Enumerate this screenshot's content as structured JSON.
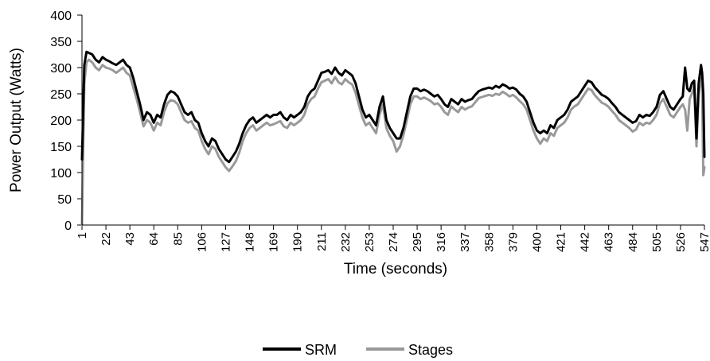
{
  "chart_data": {
    "type": "line",
    "title": "",
    "xlabel": "Time (seconds)",
    "ylabel": "Power Output (Watts)",
    "ylim": [
      0,
      400
    ],
    "yticks": [
      0,
      50,
      100,
      150,
      200,
      250,
      300,
      350,
      400
    ],
    "xlim": [
      1,
      547
    ],
    "xticks": [
      1,
      22,
      43,
      64,
      85,
      106,
      127,
      148,
      169,
      190,
      211,
      232,
      253,
      274,
      295,
      316,
      337,
      358,
      379,
      400,
      421,
      442,
      463,
      484,
      505,
      526,
      547
    ],
    "grid": false,
    "legend_position": "bottom",
    "series": [
      {
        "name": "SRM",
        "color": "#000000",
        "x": [
          1,
          3,
          5,
          7,
          10,
          13,
          16,
          19,
          22,
          25,
          28,
          31,
          34,
          37,
          40,
          43,
          46,
          49,
          52,
          55,
          58,
          61,
          64,
          67,
          70,
          73,
          76,
          79,
          82,
          85,
          88,
          91,
          94,
          97,
          100,
          103,
          106,
          109,
          112,
          115,
          118,
          121,
          124,
          127,
          130,
          133,
          136,
          139,
          142,
          145,
          148,
          151,
          154,
          157,
          160,
          163,
          166,
          169,
          172,
          175,
          178,
          181,
          184,
          187,
          190,
          193,
          196,
          199,
          202,
          205,
          208,
          211,
          214,
          217,
          220,
          223,
          226,
          229,
          232,
          235,
          238,
          241,
          244,
          247,
          250,
          253,
          256,
          259,
          262,
          265,
          268,
          271,
          274,
          277,
          280,
          283,
          286,
          289,
          292,
          295,
          298,
          301,
          304,
          307,
          310,
          313,
          316,
          319,
          322,
          325,
          328,
          331,
          334,
          337,
          340,
          343,
          346,
          349,
          352,
          355,
          358,
          361,
          364,
          367,
          370,
          373,
          376,
          379,
          382,
          385,
          388,
          391,
          394,
          397,
          400,
          403,
          406,
          409,
          412,
          415,
          418,
          421,
          424,
          427,
          430,
          433,
          436,
          439,
          442,
          445,
          448,
          451,
          454,
          457,
          460,
          463,
          466,
          469,
          472,
          475,
          478,
          481,
          484,
          487,
          490,
          493,
          496,
          499,
          502,
          505,
          508,
          511,
          514,
          517,
          520,
          523,
          526,
          528,
          530,
          532,
          534,
          536,
          538,
          540,
          542,
          544,
          545,
          546,
          547
        ],
        "y": [
          125,
          305,
          330,
          328,
          325,
          315,
          310,
          320,
          315,
          312,
          308,
          305,
          310,
          315,
          305,
          300,
          280,
          255,
          230,
          200,
          215,
          210,
          195,
          210,
          205,
          230,
          248,
          255,
          252,
          245,
          230,
          215,
          210,
          215,
          200,
          195,
          175,
          160,
          150,
          165,
          160,
          145,
          135,
          125,
          120,
          130,
          140,
          155,
          175,
          190,
          200,
          205,
          195,
          200,
          205,
          210,
          205,
          210,
          210,
          215,
          205,
          200,
          210,
          205,
          210,
          215,
          225,
          245,
          255,
          260,
          275,
          290,
          292,
          295,
          288,
          300,
          290,
          285,
          295,
          290,
          285,
          270,
          245,
          220,
          205,
          210,
          200,
          190,
          225,
          245,
          200,
          185,
          175,
          165,
          165,
          185,
          215,
          245,
          260,
          260,
          255,
          258,
          255,
          250,
          245,
          248,
          240,
          230,
          225,
          240,
          235,
          230,
          240,
          235,
          238,
          240,
          248,
          255,
          258,
          260,
          262,
          260,
          265,
          262,
          268,
          265,
          260,
          262,
          258,
          250,
          245,
          235,
          215,
          195,
          180,
          175,
          180,
          175,
          190,
          185,
          200,
          205,
          210,
          220,
          235,
          240,
          245,
          255,
          265,
          275,
          272,
          262,
          255,
          248,
          245,
          240,
          232,
          225,
          215,
          210,
          205,
          200,
          195,
          198,
          210,
          205,
          210,
          208,
          215,
          225,
          248,
          255,
          240,
          225,
          220,
          230,
          240,
          245,
          300,
          260,
          255,
          270,
          275,
          165,
          270,
          305,
          290,
          250,
          130
        ]
      },
      {
        "name": "Stages",
        "color": "#999999",
        "x": [
          1,
          3,
          5,
          7,
          10,
          13,
          16,
          19,
          22,
          25,
          28,
          31,
          34,
          37,
          40,
          43,
          46,
          49,
          52,
          55,
          58,
          61,
          64,
          67,
          70,
          73,
          76,
          79,
          82,
          85,
          88,
          91,
          94,
          97,
          100,
          103,
          106,
          109,
          112,
          115,
          118,
          121,
          124,
          127,
          130,
          133,
          136,
          139,
          142,
          145,
          148,
          151,
          154,
          157,
          160,
          163,
          166,
          169,
          172,
          175,
          178,
          181,
          184,
          187,
          190,
          193,
          196,
          199,
          202,
          205,
          208,
          211,
          214,
          217,
          220,
          223,
          226,
          229,
          232,
          235,
          238,
          241,
          244,
          247,
          250,
          253,
          256,
          259,
          262,
          265,
          268,
          271,
          274,
          277,
          280,
          283,
          286,
          289,
          292,
          295,
          298,
          301,
          304,
          307,
          310,
          313,
          316,
          319,
          322,
          325,
          328,
          331,
          334,
          337,
          340,
          343,
          346,
          349,
          352,
          355,
          358,
          361,
          364,
          367,
          370,
          373,
          376,
          379,
          382,
          385,
          388,
          391,
          394,
          397,
          400,
          403,
          406,
          409,
          412,
          415,
          418,
          421,
          424,
          427,
          430,
          433,
          436,
          439,
          442,
          445,
          448,
          451,
          454,
          457,
          460,
          463,
          466,
          469,
          472,
          475,
          478,
          481,
          484,
          487,
          490,
          493,
          496,
          499,
          502,
          505,
          508,
          511,
          514,
          517,
          520,
          523,
          526,
          528,
          530,
          532,
          534,
          536,
          538,
          540,
          542,
          544,
          545,
          546,
          547
        ],
        "y": [
          0,
          270,
          310,
          315,
          310,
          300,
          295,
          305,
          300,
          298,
          295,
          290,
          295,
          300,
          290,
          285,
          262,
          240,
          215,
          188,
          200,
          195,
          180,
          195,
          190,
          215,
          232,
          238,
          236,
          230,
          215,
          200,
          195,
          198,
          185,
          180,
          160,
          145,
          135,
          150,
          145,
          130,
          120,
          110,
          103,
          112,
          122,
          138,
          160,
          175,
          185,
          190,
          180,
          185,
          190,
          195,
          190,
          192,
          195,
          198,
          188,
          185,
          195,
          190,
          195,
          200,
          210,
          230,
          240,
          245,
          260,
          272,
          275,
          278,
          270,
          282,
          272,
          268,
          278,
          272,
          268,
          252,
          228,
          205,
          190,
          195,
          185,
          175,
          210,
          230,
          185,
          170,
          160,
          140,
          150,
          172,
          200,
          230,
          245,
          245,
          240,
          243,
          240,
          236,
          230,
          232,
          225,
          215,
          210,
          226,
          220,
          215,
          225,
          220,
          224,
          226,
          234,
          242,
          244,
          246,
          248,
          246,
          250,
          248,
          254,
          250,
          245,
          248,
          243,
          236,
          230,
          220,
          200,
          180,
          165,
          155,
          165,
          160,
          175,
          170,
          185,
          190,
          195,
          205,
          220,
          226,
          230,
          240,
          250,
          260,
          257,
          247,
          240,
          233,
          230,
          225,
          217,
          210,
          200,
          195,
          190,
          185,
          178,
          182,
          195,
          190,
          195,
          193,
          200,
          210,
          232,
          240,
          225,
          210,
          205,
          215,
          225,
          230,
          220,
          180,
          240,
          250,
          265,
          150,
          250,
          280,
          260,
          95,
          110
        ]
      }
    ]
  }
}
